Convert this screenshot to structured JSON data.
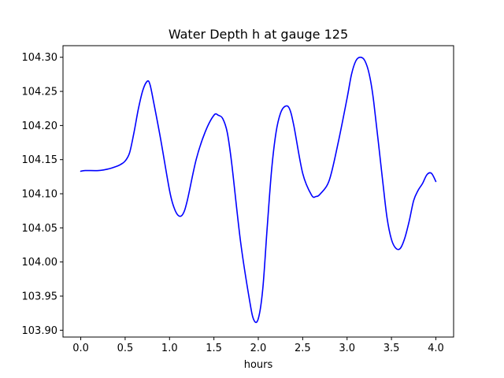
{
  "chart_data": {
    "type": "line",
    "title": "Water Depth h at gauge 125",
    "xlabel": "hours",
    "ylabel": "",
    "xlim": [
      -0.2,
      4.2
    ],
    "ylim": [
      103.89,
      104.317
    ],
    "x_ticks": [
      0.0,
      0.5,
      1.0,
      1.5,
      2.0,
      2.5,
      3.0,
      3.5,
      4.0
    ],
    "x_tick_labels": [
      "0.0",
      "0.5",
      "1.0",
      "1.5",
      "2.0",
      "2.5",
      "3.0",
      "3.5",
      "4.0"
    ],
    "y_ticks": [
      103.9,
      103.95,
      104.0,
      104.05,
      104.1,
      104.15,
      104.2,
      104.25,
      104.3
    ],
    "y_tick_labels": [
      "103.90",
      "103.95",
      "104.00",
      "104.05",
      "104.10",
      "104.15",
      "104.20",
      "104.25",
      "104.30"
    ],
    "grid": false,
    "series": [
      {
        "color": "#0000ff",
        "x": [
          0.0,
          0.05,
          0.2,
          0.3,
          0.4,
          0.45,
          0.5,
          0.55,
          0.6,
          0.65,
          0.7,
          0.75,
          0.78,
          0.82,
          0.9,
          1.0,
          1.05,
          1.1,
          1.15,
          1.2,
          1.3,
          1.4,
          1.5,
          1.55,
          1.6,
          1.65,
          1.7,
          1.8,
          1.9,
          1.95,
          2.0,
          2.05,
          2.1,
          2.15,
          2.2,
          2.25,
          2.3,
          2.35,
          2.4,
          2.5,
          2.6,
          2.65,
          2.7,
          2.8,
          2.9,
          3.0,
          3.05,
          3.1,
          3.15,
          3.2,
          3.25,
          3.3,
          3.4,
          3.45,
          3.5,
          3.55,
          3.6,
          3.65,
          3.7,
          3.75,
          3.8,
          3.85,
          3.9,
          3.95,
          4.0
        ],
        "values": [
          104.133,
          104.134,
          104.134,
          104.136,
          104.14,
          104.143,
          104.148,
          104.16,
          104.19,
          104.225,
          104.252,
          104.265,
          104.26,
          104.235,
          104.18,
          104.105,
          104.08,
          104.068,
          104.07,
          104.09,
          104.15,
          104.19,
          104.215,
          104.215,
          104.21,
          104.19,
          104.145,
          104.03,
          103.945,
          103.915,
          103.917,
          103.96,
          104.05,
          104.135,
          104.19,
          104.218,
          104.228,
          104.225,
          104.2,
          104.13,
          104.098,
          104.096,
          104.1,
          104.12,
          104.175,
          104.24,
          104.275,
          104.295,
          104.3,
          104.295,
          104.275,
          104.235,
          104.12,
          104.065,
          104.033,
          104.02,
          104.02,
          104.035,
          104.06,
          104.09,
          104.105,
          104.115,
          104.128,
          104.13,
          104.118
        ]
      }
    ]
  }
}
